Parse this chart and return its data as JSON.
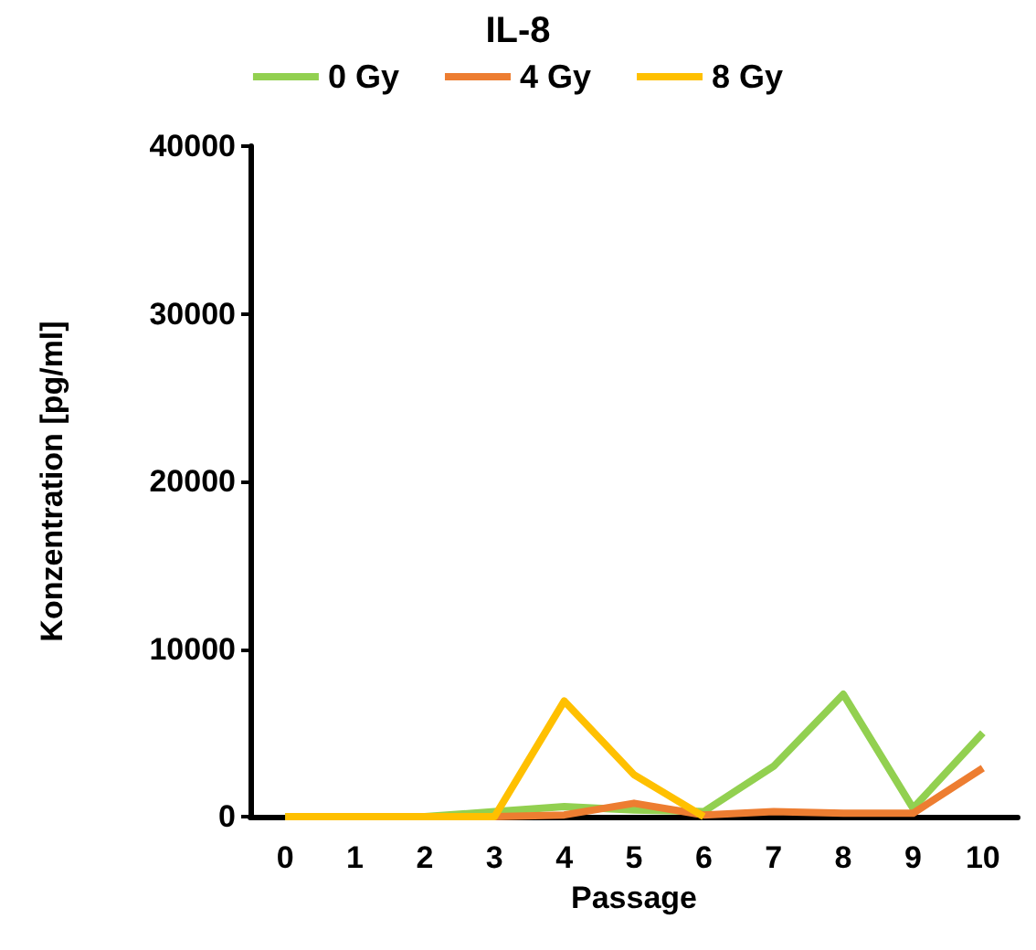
{
  "chart_data": {
    "type": "line",
    "title": "IL-8",
    "xlabel": "Passage",
    "ylabel": "Konzentration [pg/ml]",
    "categories": [
      "0",
      "1",
      "2",
      "3",
      "4",
      "5",
      "6",
      "7",
      "8",
      "9",
      "10"
    ],
    "series": [
      {
        "name": "0 Gy",
        "color": "#92d050",
        "values": [
          0,
          0,
          0,
          300,
          600,
          400,
          300,
          3000,
          7300,
          500,
          5000
        ]
      },
      {
        "name": "4 Gy",
        "color": "#ed7d31",
        "values": [
          null,
          null,
          0,
          0,
          100,
          800,
          100,
          300,
          200,
          200,
          2900
        ]
      },
      {
        "name": "8 Gy",
        "color": "#ffc000",
        "values": [
          0,
          0,
          0,
          0,
          6900,
          2500,
          0,
          null,
          null,
          null,
          null
        ]
      }
    ],
    "ylim": [
      0,
      40000
    ],
    "yticks": [
      0,
      10000,
      20000,
      30000,
      40000
    ],
    "grid": false,
    "legend": "top",
    "marker": "none",
    "line_style": "solid"
  }
}
